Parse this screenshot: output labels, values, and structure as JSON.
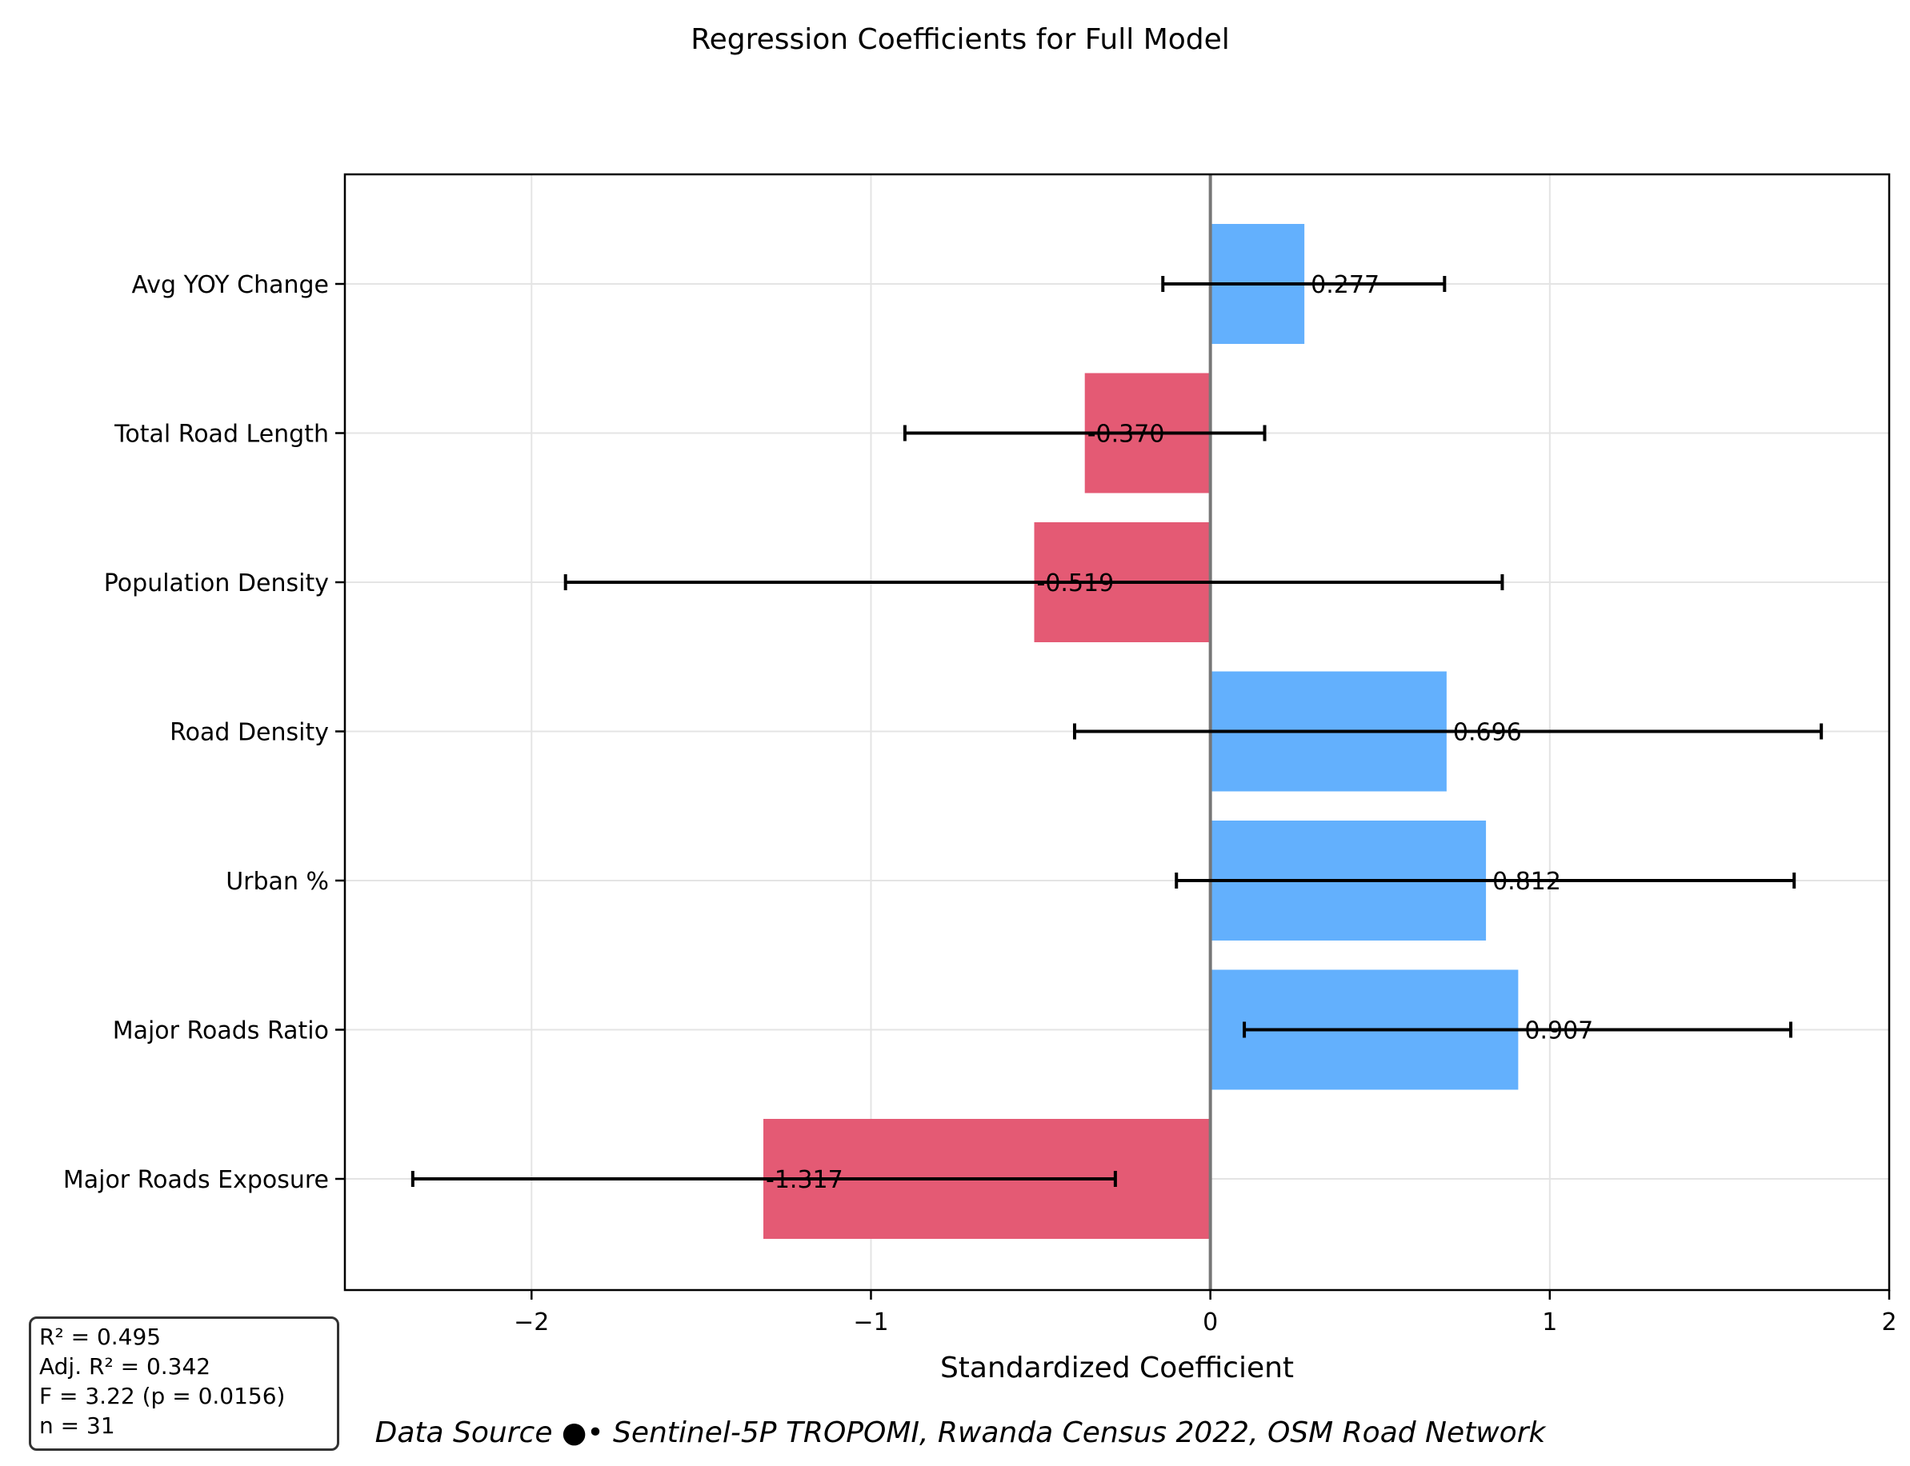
{
  "chart_data": {
    "type": "bar",
    "orientation": "horizontal",
    "title": "Regression Coefficients for Full Model",
    "xlabel": "Standardized Coefficient",
    "ylabel": "",
    "xlim": [
      -2.55,
      2.0
    ],
    "xticks": [
      -2,
      -1,
      0,
      1,
      2
    ],
    "xtick_labels": [
      "−2",
      "−1",
      "0",
      "1",
      "2"
    ],
    "grid": true,
    "categories": [
      "Avg YOY Change",
      "Total Road Length",
      "Population Density",
      "Road Density",
      "Urban %",
      "Major Roads Ratio",
      "Major Roads Exposure"
    ],
    "values": [
      0.277,
      -0.37,
      -0.519,
      0.696,
      0.812,
      0.907,
      -1.317
    ],
    "value_labels": [
      "0.277",
      "-0.370",
      "-0.519",
      "0.696",
      "0.812",
      "0.907",
      "-1.317"
    ],
    "error_low": [
      -0.14,
      -0.9,
      -1.9,
      -0.4,
      -0.1,
      0.1,
      -2.35
    ],
    "error_high": [
      0.69,
      0.16,
      0.86,
      1.8,
      1.72,
      1.71,
      -0.28
    ],
    "colors": {
      "positive": "#63b0fd",
      "negative": "#e45a74",
      "zero_line": "#777777",
      "error_bar": "#000000",
      "grid": "#e4e4e4"
    }
  },
  "stats": {
    "lines": [
      "R² = 0.495",
      "Adj. R² = 0.342",
      "F = 3.22 (p = 0.0156)",
      "n = 31"
    ]
  },
  "footer": {
    "source": "Data Source ●• Sentinel-5P TROPOMI, Rwanda Census 2022, OSM Road Network"
  }
}
